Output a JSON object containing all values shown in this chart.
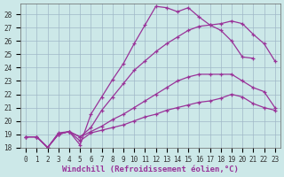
{
  "xlabel": "Windchill (Refroidissement éolien,°C)",
  "ylabel": "",
  "xlim": [
    -0.5,
    23.5
  ],
  "ylim": [
    18,
    28.8
  ],
  "xticks": [
    0,
    1,
    2,
    3,
    4,
    5,
    6,
    7,
    8,
    9,
    10,
    11,
    12,
    13,
    14,
    15,
    16,
    17,
    18,
    19,
    20,
    21,
    22,
    23
  ],
  "yticks": [
    18,
    19,
    20,
    21,
    22,
    23,
    24,
    25,
    26,
    27,
    28
  ],
  "background_color": "#cce8e8",
  "grid_color": "#a0b8c8",
  "line_color": "#993399",
  "lines": [
    {
      "x": [
        1,
        2,
        3,
        4,
        5,
        6,
        7,
        8,
        9,
        10,
        11,
        12,
        13,
        14,
        15,
        16,
        17,
        18,
        19,
        20,
        21
      ],
      "y": [
        18.8,
        18.0,
        19.0,
        19.2,
        18.2,
        20.5,
        21.8,
        23.1,
        24.3,
        25.8,
        27.2,
        28.6,
        28.5,
        28.2,
        28.5,
        27.8,
        27.2,
        26.8,
        26.0,
        24.8,
        24.7
      ]
    },
    {
      "x": [
        0,
        1,
        2,
        3,
        4,
        5,
        6,
        7,
        8,
        9,
        10,
        11,
        12,
        13,
        14,
        15,
        16,
        17,
        18,
        19,
        20,
        21,
        22,
        23
      ],
      "y": [
        18.8,
        18.8,
        18.0,
        19.0,
        19.2,
        18.8,
        19.5,
        20.8,
        21.8,
        22.8,
        23.8,
        24.5,
        25.2,
        25.8,
        26.3,
        26.8,
        27.1,
        27.2,
        27.3,
        27.5,
        27.3,
        26.5,
        25.8,
        24.5
      ]
    },
    {
      "x": [
        0,
        1,
        2,
        3,
        4,
        5,
        6,
        7,
        8,
        9,
        10,
        11,
        12,
        13,
        14,
        15,
        16,
        17,
        18,
        19,
        20,
        21,
        22,
        23
      ],
      "y": [
        18.8,
        18.8,
        18.0,
        19.1,
        19.2,
        18.8,
        19.2,
        19.6,
        20.1,
        20.5,
        21.0,
        21.5,
        22.0,
        22.5,
        23.0,
        23.3,
        23.5,
        23.5,
        23.5,
        23.5,
        23.0,
        22.5,
        22.2,
        21.0
      ]
    },
    {
      "x": [
        0,
        1,
        2,
        3,
        4,
        5,
        6,
        7,
        8,
        9,
        10,
        11,
        12,
        13,
        14,
        15,
        16,
        17,
        18,
        19,
        20,
        21,
        22,
        23
      ],
      "y": [
        18.8,
        18.8,
        18.0,
        19.0,
        19.2,
        18.5,
        19.1,
        19.3,
        19.5,
        19.7,
        20.0,
        20.3,
        20.5,
        20.8,
        21.0,
        21.2,
        21.4,
        21.5,
        21.7,
        22.0,
        21.8,
        21.3,
        21.0,
        20.8
      ]
    }
  ],
  "title_fontsize": 7,
  "axis_fontsize": 6.5,
  "tick_fontsize": 5.5
}
